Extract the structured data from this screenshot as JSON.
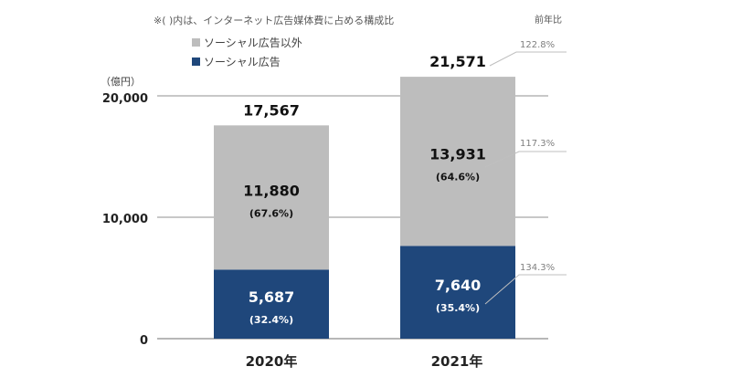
{
  "chart_data": {
    "type": "bar",
    "stacked": true,
    "note": "※(  )内は、インターネット広告媒体費に占める構成比",
    "unit_label": "（億円）",
    "categories": [
      "2020年",
      "2021年"
    ],
    "yticks": [
      "0",
      "10,000",
      "20,000"
    ],
    "ylim": [
      0,
      21571
    ],
    "series": [
      {
        "name": "ソーシャル広告",
        "color": "#1f477b",
        "values": [
          5687,
          7640
        ],
        "labels": [
          "5,687",
          "7,640"
        ],
        "shares": [
          "(32.4%)",
          "(35.4%)"
        ]
      },
      {
        "name": "ソーシャル広告以外",
        "color": "#bdbdbd",
        "values": [
          11880,
          13931
        ],
        "labels": [
          "11,880",
          "13,931"
        ],
        "shares": [
          "(67.6%)",
          "(64.6%)"
        ]
      }
    ],
    "totals": [
      17567,
      21571
    ],
    "total_labels": [
      "17,567",
      "21,571"
    ],
    "legend": [
      "ソーシャル広告以外",
      "ソーシャル広告"
    ],
    "yoy_header": "前年比",
    "yoy": [
      "122.8%",
      "117.3%",
      "134.3%"
    ],
    "grid": true,
    "legend_position": "top-left"
  }
}
